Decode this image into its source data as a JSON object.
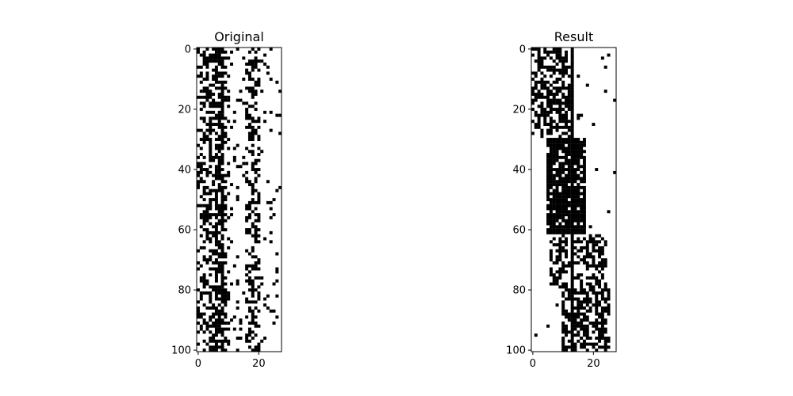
{
  "chart_data": [
    {
      "type": "heatmap",
      "title": "Original",
      "colormap": "binary",
      "colors": {
        "one": "#000000",
        "zero": "#ffffff"
      },
      "rows": 101,
      "cols": 28,
      "xlim": [
        -0.5,
        27.5
      ],
      "ylim": [
        100.5,
        -0.5
      ],
      "xticks": [
        0,
        20
      ],
      "yticks": [
        0,
        20,
        40,
        60,
        80,
        100
      ],
      "grid": false,
      "column_fill_density": [
        0.3,
        0.35,
        0.45,
        0.4,
        0.55,
        0.5,
        0.75,
        0.7,
        0.85,
        0.35,
        0.25,
        0.1,
        0.08,
        0.08,
        0.06,
        0.08,
        0.3,
        0.45,
        0.55,
        0.4,
        0.35,
        0.06,
        0.06,
        0.08,
        0.06,
        0.05,
        0.05,
        0.06
      ],
      "seed": 17
    },
    {
      "type": "heatmap",
      "title": "Result",
      "colormap": "binary",
      "colors": {
        "one": "#000000",
        "zero": "#ffffff"
      },
      "rows": 101,
      "cols": 28,
      "xlim": [
        -0.5,
        27.5
      ],
      "ylim": [
        100.5,
        -0.5
      ],
      "xticks": [
        0,
        20
      ],
      "yticks": [
        0,
        20,
        40,
        60,
        80,
        100
      ],
      "grid": false,
      "seed": 31
    }
  ]
}
